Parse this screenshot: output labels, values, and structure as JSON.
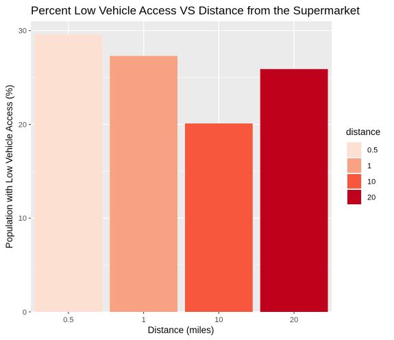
{
  "chart_data": {
    "type": "bar",
    "title": "Percent Low Vehicle Access VS Distance from the Supermarket",
    "xlabel": "Distance (miles)",
    "ylabel": "Population with Low Vehicle Access (%)",
    "categories": [
      "0.5",
      "1",
      "10",
      "20"
    ],
    "values": [
      29.6,
      27.3,
      20.1,
      25.9
    ],
    "colors": [
      "#fce0d2",
      "#f9a283",
      "#f7583d",
      "#c0011c"
    ],
    "ylim": [
      0,
      31
    ],
    "yticks": [
      0,
      10,
      20,
      30
    ],
    "yticklabels": [
      "0",
      "10",
      "20",
      "30"
    ],
    "grid": true,
    "panel_background": "#ebebeb",
    "legend": {
      "title": "distance",
      "position": "right",
      "items": [
        "0.5",
        "1",
        "10",
        "20"
      ]
    }
  }
}
